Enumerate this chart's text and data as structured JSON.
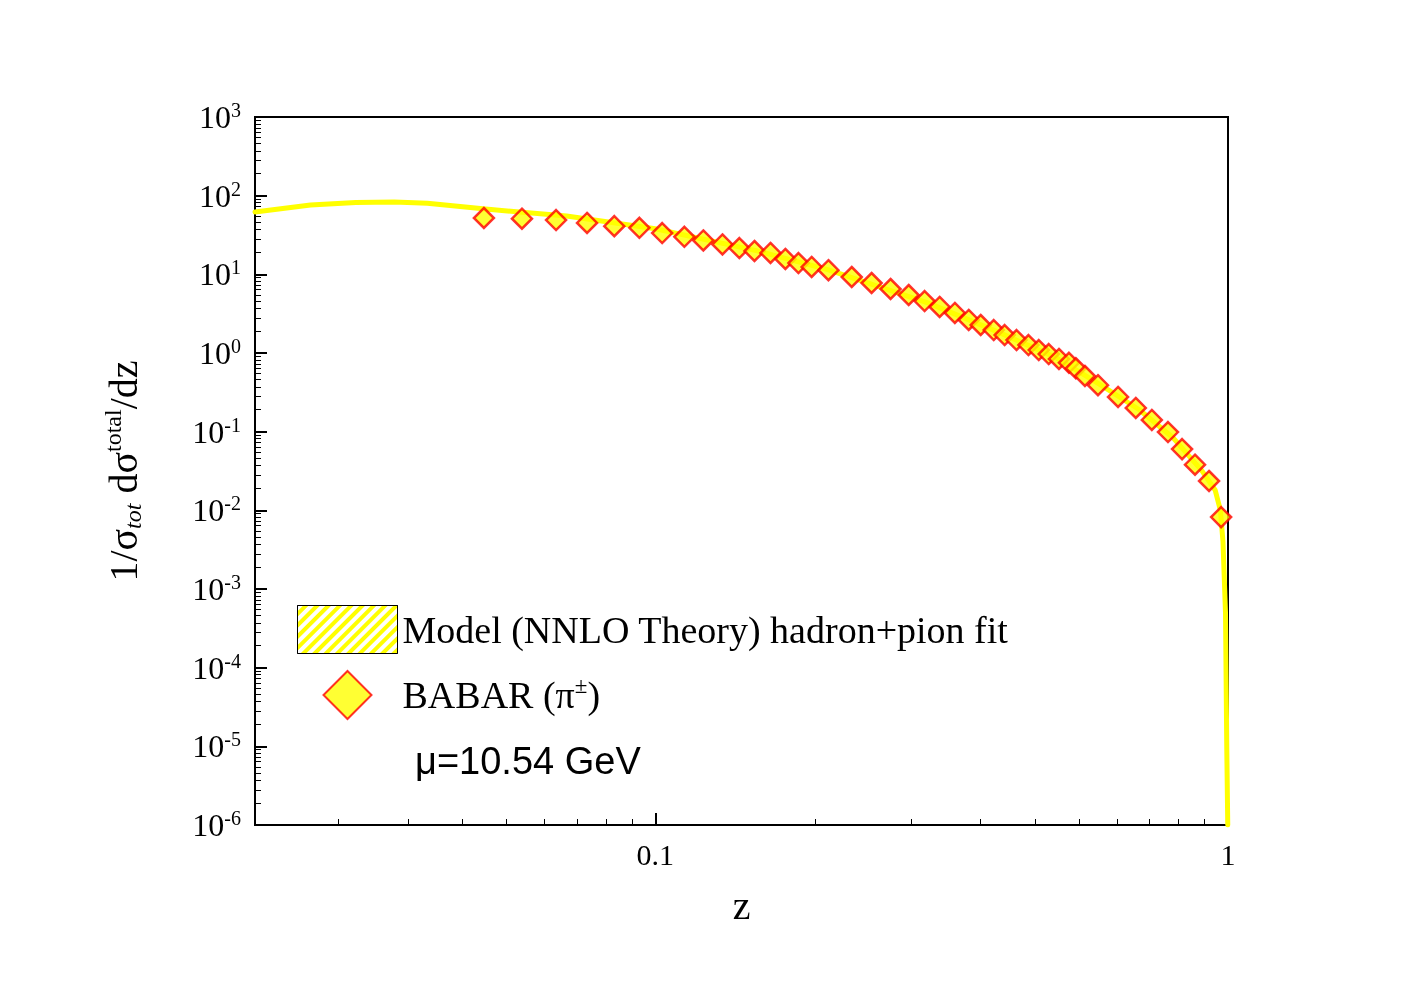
{
  "chart_data": {
    "type": "scatter",
    "xlabel": "z",
    "ylabel": "1/σ$_{tot}$ dσ$^{total}$/dz",
    "log": "xy",
    "xlim": [
      0.02,
      1
    ],
    "ylim": [
      1e-06,
      1000
    ],
    "xticks": [
      0.1,
      1
    ],
    "yticks": [
      {
        "value": 1e-06,
        "label": "10$^{-6}$"
      },
      {
        "value": 1e-05,
        "label": "10$^{-5}$"
      },
      {
        "value": 0.0001,
        "label": "10$^{-4}$"
      },
      {
        "value": 0.001,
        "label": "10$^{-3}$"
      },
      {
        "value": 0.01,
        "label": "10$^{-2}$"
      },
      {
        "value": 0.1,
        "label": "10$^{-1}$"
      },
      {
        "value": 1,
        "label": "10$^{0}$"
      },
      {
        "value": 10,
        "label": "10$^{1}$"
      },
      {
        "value": 100,
        "label": "10$^{2}$"
      },
      {
        "value": 1000,
        "label": "10$^{3}$"
      }
    ],
    "grid": false,
    "legend": "bottom left",
    "annotations": [
      "μ=10.54 GeV"
    ],
    "series": [
      {
        "name": "Model (NNLO Theory) hadron+pion fit",
        "type": "line",
        "color": "#ffff00",
        "marker": "none",
        "x": [
          0.02,
          0.025,
          0.03,
          0.035,
          0.04,
          0.05,
          0.07,
          0.1,
          0.15,
          0.2,
          0.3,
          0.4,
          0.5,
          0.6,
          0.7,
          0.8,
          0.9,
          0.95,
          0.97,
          0.98,
          0.99,
          0.995,
          0.999
        ],
        "values": [
          62,
          76,
          82,
          83,
          80,
          68,
          55,
          38,
          20,
          11.5,
          4.3,
          1.8,
          0.88,
          0.39,
          0.19,
          0.085,
          0.032,
          0.018,
          0.01,
          0.004,
          0.0005,
          1e-05,
          1e-06
        ]
      },
      {
        "name": "BABAR (π$^{±}$)",
        "color": "#ffff00",
        "marker": "diamond",
        "x": [
          0.0502,
          0.0585,
          0.0671,
          0.076,
          0.0848,
          0.0938,
          0.1028,
          0.1124,
          0.1213,
          0.131,
          0.1402,
          0.149,
          0.1589,
          0.1687,
          0.1778,
          0.1875,
          0.2006,
          0.2203,
          0.2386,
          0.2575,
          0.277,
          0.2953,
          0.3137,
          0.3335,
          0.3526,
          0.37,
          0.3899,
          0.4074,
          0.4273,
          0.4483,
          0.4673,
          0.4864,
          0.5068,
          0.5276,
          0.5424,
          0.5626,
          0.5929,
          0.6427,
          0.6902,
          0.7362,
          0.7856,
          0.8314,
          0.8758,
          0.9266,
          0.9727
        ],
        "values": [
          52,
          51,
          49,
          45,
          41,
          39,
          33.5,
          30,
          27,
          24,
          21.6,
          19.8,
          18.7,
          15.7,
          13.9,
          12.4,
          11.3,
          9.25,
          7.76,
          6.51,
          5.46,
          4.58,
          3.85,
          3.23,
          2.63,
          2.27,
          1.96,
          1.69,
          1.46,
          1.26,
          1.09,
          0.97,
          0.84,
          0.75,
          0.64,
          0.51,
          0.39,
          0.276,
          0.2,
          0.141,
          0.099,
          0.06,
          0.038,
          0.0236,
          0.0082
        ]
      }
    ]
  }
}
